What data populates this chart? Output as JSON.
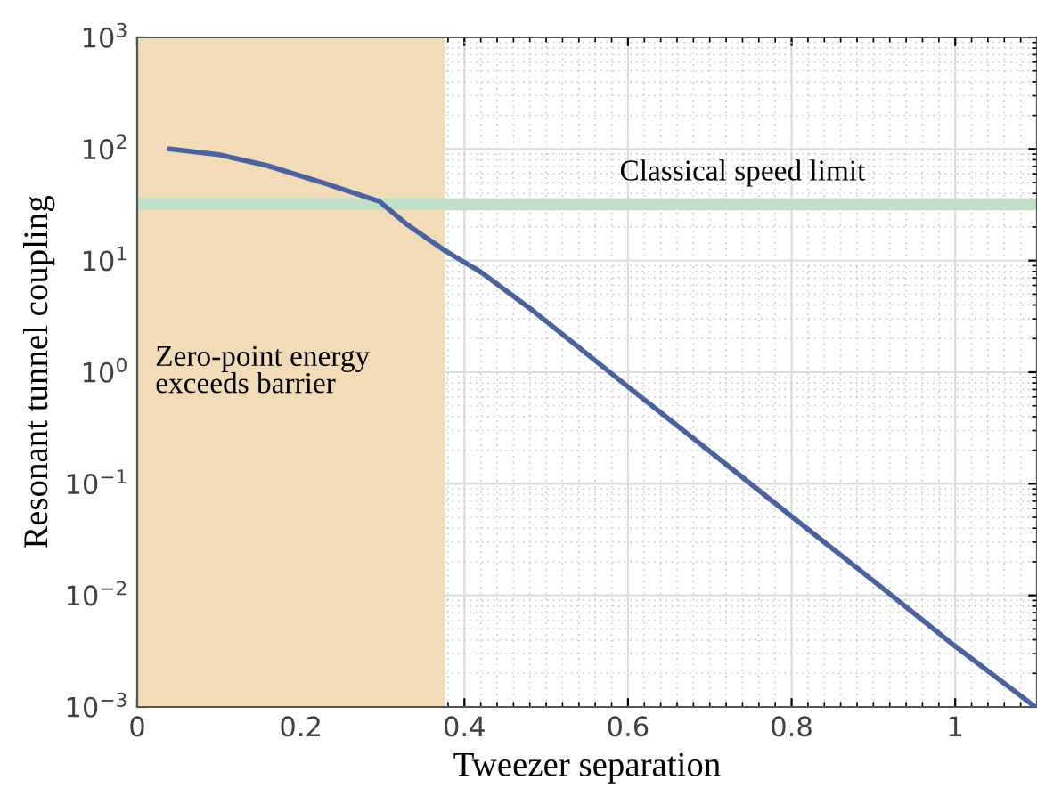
{
  "chart_data": {
    "type": "line",
    "xlabel": "Tweezer separation",
    "ylabel": "Resonant tunnel coupling",
    "x": [
      0.04,
      0.1,
      0.159,
      0.23,
      0.296,
      0.33,
      0.376,
      0.42,
      0.485,
      0.6,
      0.7,
      0.8,
      0.9,
      1.0,
      1.098
    ],
    "series": [
      {
        "color": "#4a63a0",
        "values": [
          100,
          89,
          71,
          49,
          34,
          21,
          12.3,
          7.9,
          3.5,
          0.74,
          0.195,
          0.051,
          0.0135,
          0.0035,
          0.001
        ]
      }
    ],
    "log": "y",
    "xlim": [
      0,
      1.1
    ],
    "ylim": [
      0.001,
      1000
    ],
    "xticks": [
      0,
      0.2,
      0.4,
      0.6,
      0.8,
      1
    ],
    "yticks": [
      {
        "value": 0.001,
        "label": "10$^{−3}$"
      },
      {
        "value": 0.01,
        "label": "10$^{−2}$"
      },
      {
        "value": 0.1,
        "label": "10$^{−1}$"
      },
      {
        "value": 1,
        "label": "10$^{0}$"
      },
      {
        "value": 10,
        "label": "10$^{1}$"
      },
      {
        "value": 100,
        "label": "10$^{2}$"
      },
      {
        "value": 1000,
        "label": "10$^{3}$"
      }
    ],
    "grid": true,
    "line_style": "solid",
    "marker": "none",
    "bands": [
      {
        "axis": "x",
        "from": 0,
        "to": 0.376,
        "label": "Zero-point energy\nexceeds barrier",
        "color": "#f2dcb7"
      }
    ],
    "ref_lines": [
      {
        "axis": "y",
        "value": 32,
        "label": "Classical speed limit",
        "color": "#c2e0c8"
      }
    ]
  }
}
